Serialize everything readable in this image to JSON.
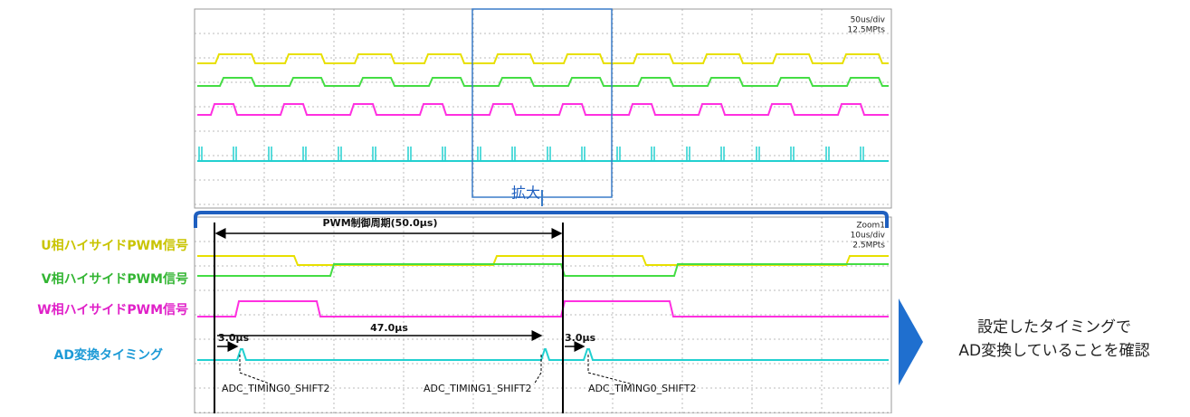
{
  "top_scope": {
    "timebase": "50us/div",
    "points": "12.5MPts"
  },
  "zoom_label": "拡大",
  "bottom_scope": {
    "title": "Zoom1",
    "timebase": "10us/div",
    "points": "2.5MPts",
    "period_label": "PWM制御周期(50.0μs)",
    "interval_label": "47.0μs",
    "shift_labels": [
      "3.0μs",
      "3.0μs"
    ],
    "adc_labels": [
      "ADC_TIMING0_SHIFT2",
      "ADC_TIMING1_SHIFT2",
      "ADC_TIMING0_SHIFT2"
    ]
  },
  "signal_labels": [
    "U相ハイサイドPWM信号",
    "V相ハイサイドPWM信号",
    "W相ハイサイドPWM信号",
    "AD変換タイミング"
  ],
  "conclusion": [
    "設定したタイミングで",
    "AD変換していることを確認"
  ]
}
